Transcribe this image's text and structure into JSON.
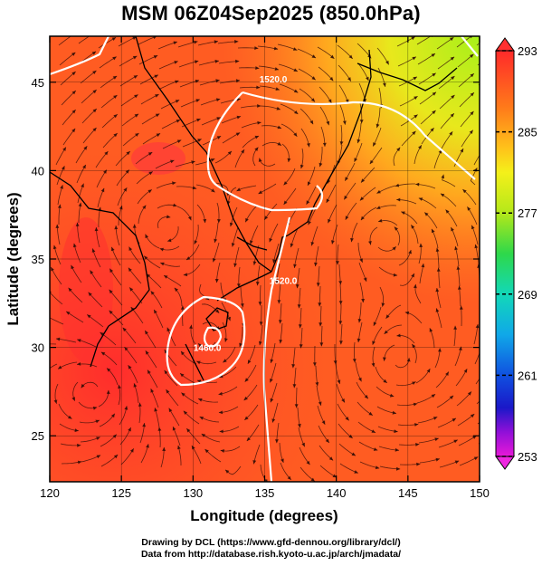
{
  "title": "MSM 06Z04Sep2025 (850.0hPa)",
  "map": {
    "lon_range": [
      120,
      150
    ],
    "lat_range": [
      22.4,
      47.6
    ],
    "x_ticks": [
      120,
      125,
      130,
      135,
      140,
      145,
      150
    ],
    "x_tick_labels": [
      "120",
      "125",
      "130",
      "135",
      "140",
      "145",
      "150"
    ],
    "y_ticks": [
      25,
      30,
      35,
      40,
      45
    ],
    "y_tick_labels": [
      "25",
      "30",
      "35",
      "40",
      "45"
    ],
    "xlabel": "Longitude (degrees)",
    "ylabel": "Latitude  (degrees)",
    "grid": true,
    "contour_labels": [
      {
        "text": "1520.0",
        "lon": 135.6,
        "lat": 45.0
      },
      {
        "text": "1520.0",
        "lon": 136.3,
        "lat": 33.6
      },
      {
        "text": "1460.0",
        "lon": 131.0,
        "lat": 29.8
      }
    ],
    "colors": {
      "low": "#ff3a2e",
      "mid": "#ff6a1f",
      "high": "#d8e81c",
      "coast": "#000000",
      "contour": "#ffffff"
    }
  },
  "colorbar": {
    "ticks": [
      293,
      285,
      277,
      269,
      261,
      253
    ],
    "tick_labels": [
      "293",
      "285",
      "277",
      "269",
      "261",
      "253"
    ],
    "range": [
      253,
      293
    ]
  },
  "credits": {
    "line1": "Drawing by DCL (https://www.gfd-dennou.org/library/dcl/)",
    "line2": "Data from http://database.rish.kyoto-u.ac.jp/arch/jmadata/"
  }
}
